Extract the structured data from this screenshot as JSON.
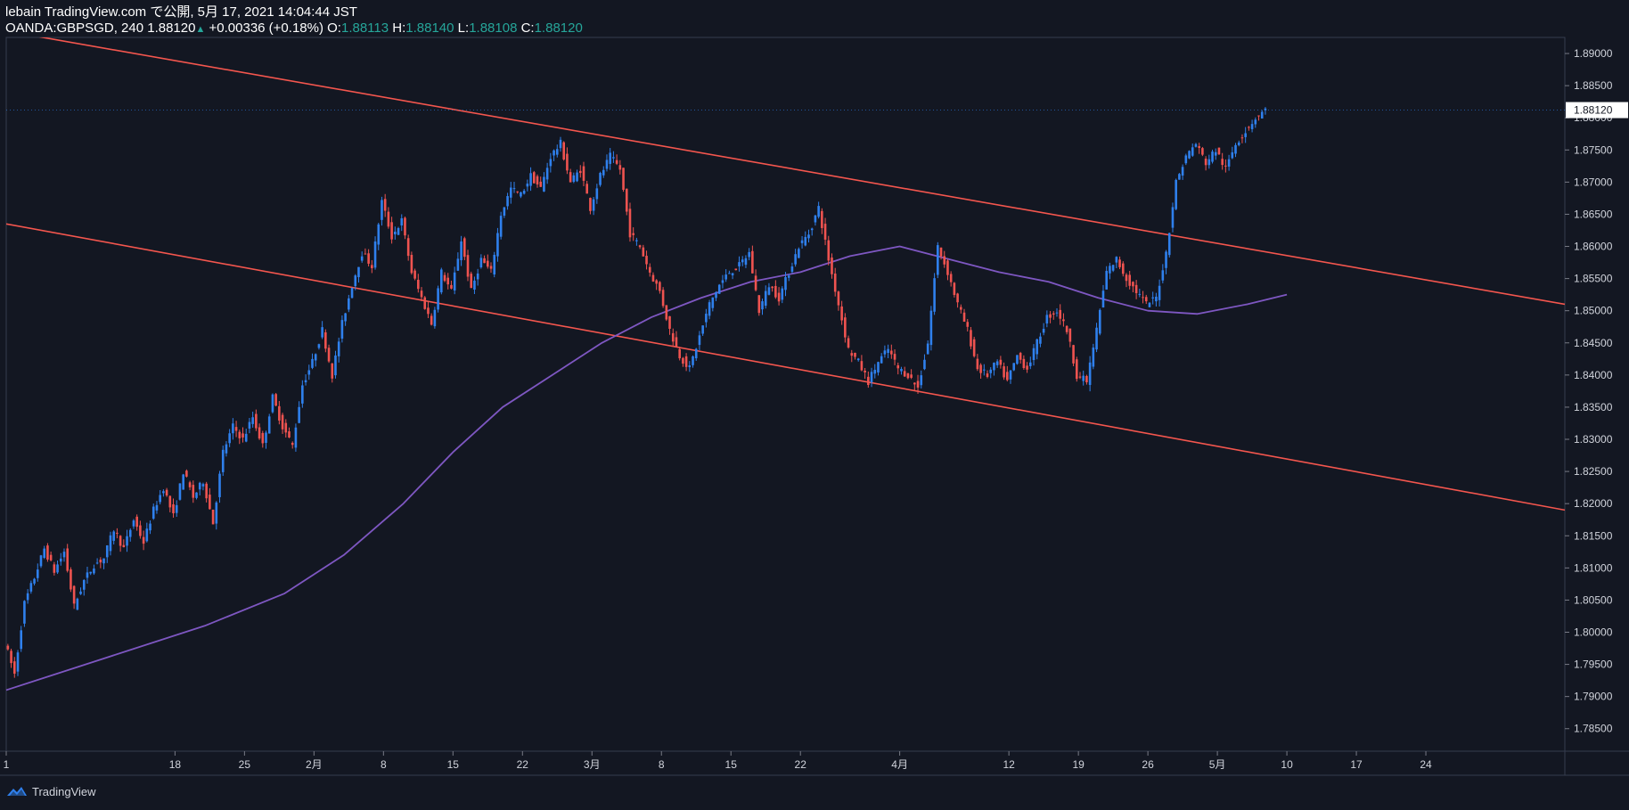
{
  "header": {
    "line1": "lebain TradingView.com で公開, 5月 17, 2021 14:04:44 JST",
    "symbol": "OANDA:GBPSGD, 240",
    "last": "1.88120",
    "up_arrow": "▲",
    "change": "+0.00336 (+0.18%)",
    "o_label": "O:",
    "o_val": "1.88113",
    "h_label": "H:",
    "h_val": "1.88140",
    "l_label": "L:",
    "l_val": "1.88108",
    "c_label": "C:",
    "c_val": "1.88120"
  },
  "footer": {
    "brand": "TradingView",
    "icon": "tradingview-logo-icon"
  },
  "colors": {
    "bg": "#131722",
    "up": "#2f80ed",
    "down": "#ef5350",
    "ma": "#7e57c2",
    "channel": "#f4564e",
    "grid": "#1f2433",
    "price_tag": "#ffffff"
  },
  "chart_data": {
    "type": "candlestick",
    "title": "OANDA:GBPSGD, 240",
    "ylim": [
      1.7815,
      1.8925
    ],
    "y_ticks": [
      "1.89000",
      "1.88500",
      "1.88000",
      "1.87500",
      "1.87000",
      "1.86500",
      "1.86000",
      "1.85500",
      "1.85000",
      "1.84500",
      "1.84000",
      "1.83500",
      "1.83000",
      "1.82500",
      "1.82000",
      "1.81500",
      "1.81000",
      "1.80500",
      "1.80000",
      "1.79500",
      "1.79000",
      "1.78500"
    ],
    "current_price_label": "1.88120",
    "x_ticks": [
      {
        "label": "1",
        "day": 0
      },
      {
        "label": "18",
        "day": 17
      },
      {
        "label": "25",
        "day": 24
      },
      {
        "label": "2月",
        "day": 31
      },
      {
        "label": "8",
        "day": 38
      },
      {
        "label": "15",
        "day": 45
      },
      {
        "label": "22",
        "day": 52
      },
      {
        "label": "3月",
        "day": 59
      },
      {
        "label": "8",
        "day": 66
      },
      {
        "label": "15",
        "day": 73
      },
      {
        "label": "22",
        "day": 80
      },
      {
        "label": "4月",
        "day": 90
      },
      {
        "label": "12",
        "day": 101
      },
      {
        "label": "19",
        "day": 108
      },
      {
        "label": "26",
        "day": 115
      },
      {
        "label": "5月",
        "day": 122
      },
      {
        "label": "10",
        "day": 129
      },
      {
        "label": "17",
        "day": 136
      },
      {
        "label": "24",
        "day": 143
      }
    ],
    "x_day_range": [
      0,
      157
    ],
    "price_path": [
      [
        0,
        1.7985
      ],
      [
        1,
        1.7935
      ],
      [
        2,
        1.8045
      ],
      [
        3,
        1.8085
      ],
      [
        4,
        1.813
      ],
      [
        5,
        1.8095
      ],
      [
        6,
        1.8125
      ],
      [
        7,
        1.804
      ],
      [
        8,
        1.808
      ],
      [
        9,
        1.8105
      ],
      [
        10,
        1.8115
      ],
      [
        11,
        1.816
      ],
      [
        12,
        1.813
      ],
      [
        13,
        1.8175
      ],
      [
        14,
        1.814
      ],
      [
        15,
        1.819
      ],
      [
        16,
        1.8225
      ],
      [
        17,
        1.818
      ],
      [
        18,
        1.825
      ],
      [
        19,
        1.821
      ],
      [
        20,
        1.8235
      ],
      [
        21,
        1.817
      ],
      [
        22,
        1.828
      ],
      [
        23,
        1.832
      ],
      [
        24,
        1.83
      ],
      [
        25,
        1.8335
      ],
      [
        26,
        1.829
      ],
      [
        27,
        1.8365
      ],
      [
        28,
        1.832
      ],
      [
        29,
        1.829
      ],
      [
        30,
        1.8385
      ],
      [
        31,
        1.842
      ],
      [
        32,
        1.847
      ],
      [
        33,
        1.84
      ],
      [
        34,
        1.848
      ],
      [
        35,
        1.854
      ],
      [
        36,
        1.859
      ],
      [
        37,
        1.857
      ],
      [
        38,
        1.867
      ],
      [
        39,
        1.8615
      ],
      [
        40,
        1.864
      ],
      [
        41,
        1.856
      ],
      [
        42,
        1.852
      ],
      [
        43,
        1.848
      ],
      [
        44,
        1.856
      ],
      [
        45,
        1.853
      ],
      [
        46,
        1.861
      ],
      [
        47,
        1.853
      ],
      [
        48,
        1.858
      ],
      [
        49,
        1.856
      ],
      [
        50,
        1.865
      ],
      [
        51,
        1.869
      ],
      [
        52,
        1.868
      ],
      [
        53,
        1.871
      ],
      [
        54,
        1.869
      ],
      [
        55,
        1.874
      ],
      [
        56,
        1.876
      ],
      [
        57,
        1.87
      ],
      [
        58,
        1.872
      ],
      [
        59,
        1.866
      ],
      [
        60,
        1.871
      ],
      [
        61,
        1.874
      ],
      [
        62,
        1.872
      ],
      [
        63,
        1.862
      ],
      [
        64,
        1.86
      ],
      [
        65,
        1.856
      ],
      [
        66,
        1.853
      ],
      [
        67,
        1.847
      ],
      [
        68,
        1.843
      ],
      [
        69,
        1.841
      ],
      [
        70,
        1.846
      ],
      [
        71,
        1.851
      ],
      [
        72,
        1.854
      ],
      [
        73,
        1.856
      ],
      [
        74,
        1.857
      ],
      [
        75,
        1.859
      ],
      [
        76,
        1.85
      ],
      [
        77,
        1.854
      ],
      [
        78,
        1.852
      ],
      [
        79,
        1.856
      ],
      [
        80,
        1.86
      ],
      [
        81,
        1.862
      ],
      [
        82,
        1.866
      ],
      [
        83,
        1.858
      ],
      [
        84,
        1.851
      ],
      [
        85,
        1.844
      ],
      [
        86,
        1.842
      ],
      [
        87,
        1.839
      ],
      [
        88,
        1.842
      ],
      [
        89,
        1.844
      ],
      [
        90,
        1.841
      ],
      [
        91,
        1.84
      ],
      [
        92,
        1.838
      ],
      [
        93,
        1.845
      ],
      [
        94,
        1.86
      ],
      [
        95,
        1.856
      ],
      [
        96,
        1.851
      ],
      [
        97,
        1.847
      ],
      [
        98,
        1.841
      ],
      [
        99,
        1.84
      ],
      [
        100,
        1.842
      ],
      [
        101,
        1.839
      ],
      [
        102,
        1.843
      ],
      [
        103,
        1.841
      ],
      [
        104,
        1.845
      ],
      [
        105,
        1.849
      ],
      [
        106,
        1.85
      ],
      [
        107,
        1.847
      ],
      [
        108,
        1.84
      ],
      [
        109,
        1.839
      ],
      [
        110,
        1.847
      ],
      [
        111,
        1.856
      ],
      [
        112,
        1.858
      ],
      [
        113,
        1.855
      ],
      [
        114,
        1.853
      ],
      [
        115,
        1.851
      ],
      [
        116,
        1.852
      ],
      [
        117,
        1.859
      ],
      [
        118,
        1.87
      ],
      [
        119,
        1.874
      ],
      [
        120,
        1.876
      ],
      [
        121,
        1.873
      ],
      [
        122,
        1.875
      ],
      [
        123,
        1.872
      ],
      [
        124,
        1.876
      ],
      [
        125,
        1.878
      ],
      [
        126,
        1.88
      ],
      [
        127,
        1.8812
      ]
    ],
    "ma_path": [
      [
        0,
        1.791
      ],
      [
        10,
        1.796
      ],
      [
        20,
        1.801
      ],
      [
        28,
        1.806
      ],
      [
        34,
        1.812
      ],
      [
        40,
        1.82
      ],
      [
        45,
        1.828
      ],
      [
        50,
        1.835
      ],
      [
        55,
        1.84
      ],
      [
        60,
        1.845
      ],
      [
        65,
        1.849
      ],
      [
        70,
        1.852
      ],
      [
        75,
        1.8545
      ],
      [
        80,
        1.856
      ],
      [
        85,
        1.8585
      ],
      [
        90,
        1.86
      ],
      [
        95,
        1.858
      ],
      [
        100,
        1.856
      ],
      [
        105,
        1.8545
      ],
      [
        110,
        1.852
      ],
      [
        115,
        1.85
      ],
      [
        120,
        1.8495
      ],
      [
        125,
        1.851
      ],
      [
        129,
        1.8525
      ]
    ],
    "channel_upper": [
      [
        0,
        1.8935
      ],
      [
        157,
        1.851
      ]
    ],
    "channel_lower": [
      [
        0,
        1.8635
      ],
      [
        157,
        1.819
      ]
    ]
  }
}
